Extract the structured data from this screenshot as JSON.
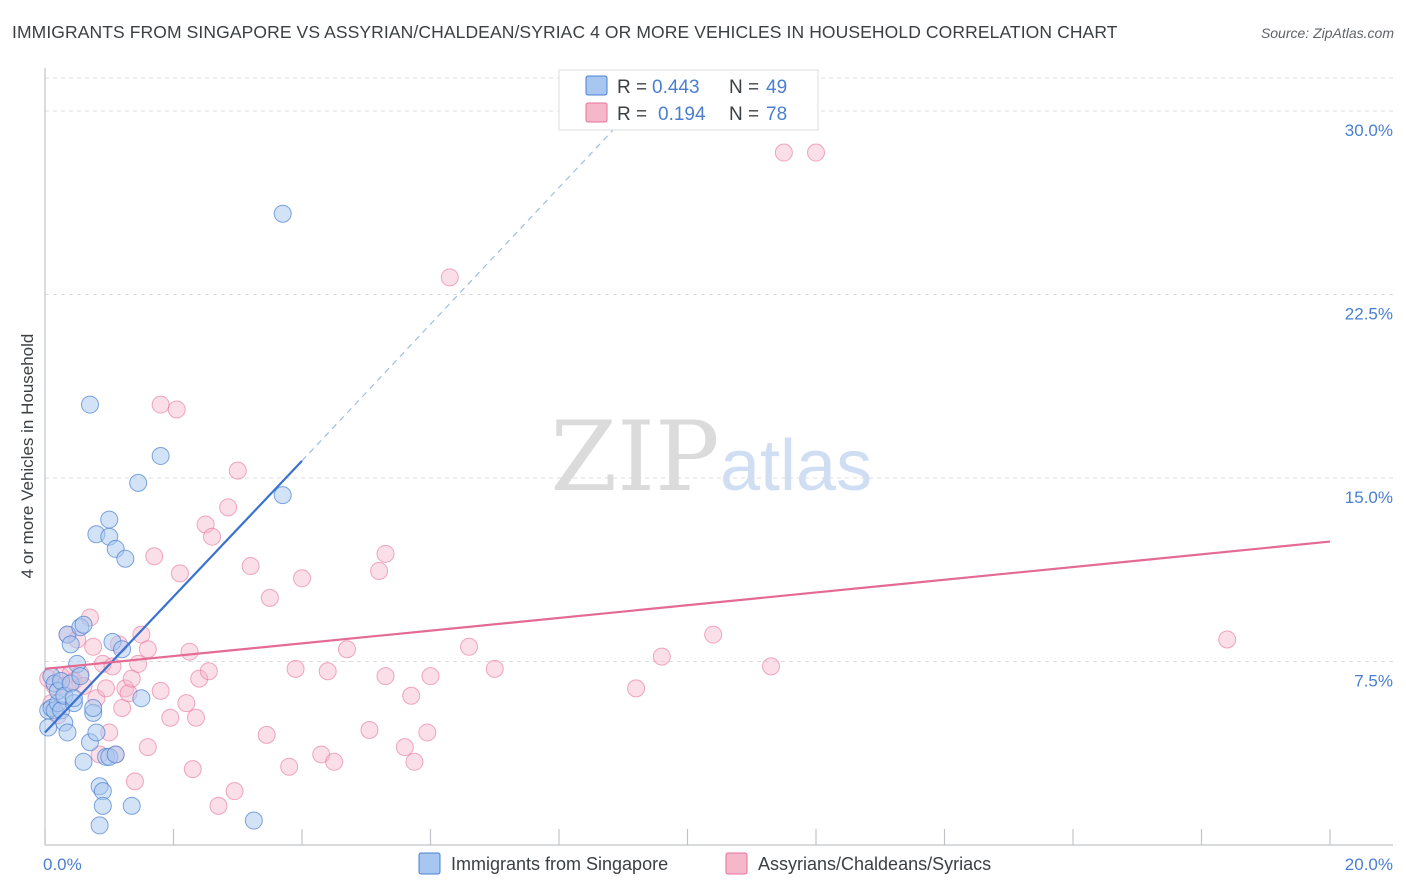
{
  "title": "IMMIGRANTS FROM SINGAPORE VS ASSYRIAN/CHALDEAN/SYRIAC 4 OR MORE VEHICLES IN HOUSEHOLD CORRELATION CHART",
  "source": "Source: ZipAtlas.com",
  "watermark": {
    "zip": "ZIP",
    "atlas": "atlas"
  },
  "colors": {
    "blue": "#4a7fd0",
    "blue_fill": "#a8c7f0",
    "blue_line": "#3a73cf",
    "pink": "#e8729a",
    "pink_fill": "#f5b8cb",
    "pink_line": "#e46a94",
    "grid": "#dadce0",
    "text": "#3c4043"
  },
  "chart_data": {
    "type": "scatter",
    "title": "IMMIGRANTS FROM SINGAPORE VS ASSYRIAN/CHALDEAN/SYRIAC 4 OR MORE VEHICLES IN HOUSEHOLD CORRELATION CHART",
    "xlabel": "",
    "ylabel": "4 or more Vehicles in Household",
    "xlim": [
      0,
      20
    ],
    "ylim": [
      0,
      32
    ],
    "x_tick_labels": [
      "0.0%",
      "20.0%"
    ],
    "y_ticks": [
      7.5,
      15.0,
      22.5,
      30.0
    ],
    "y_tick_labels": [
      "7.5%",
      "15.0%",
      "22.5%",
      "30.0%"
    ],
    "legend": [
      {
        "series": "Immigrants from Singapore",
        "r_label": "R =",
        "r": "0.443",
        "n_label": "N =",
        "n": "49"
      },
      {
        "series": "Assyrians/Chaldeans/Syriacs",
        "r_label": "R =",
        "r": "0.194",
        "n_label": "N =",
        "n": "78"
      }
    ],
    "series": [
      {
        "name": "Immigrants from Singapore",
        "color": "#4a7fd0",
        "trend": {
          "x0": 0,
          "y0": 4.6,
          "x1": 4.0,
          "y1": 15.7,
          "dashed_to_x": 9.3,
          "dashed_to_y": 30.5
        },
        "points": [
          [
            0.05,
            4.8
          ],
          [
            0.05,
            5.5
          ],
          [
            0.1,
            5.6
          ],
          [
            0.1,
            6.9
          ],
          [
            0.15,
            5.5
          ],
          [
            0.15,
            6.6
          ],
          [
            0.2,
            5.8
          ],
          [
            0.2,
            6.3
          ],
          [
            0.25,
            5.5
          ],
          [
            0.25,
            6.7
          ],
          [
            0.3,
            6.1
          ],
          [
            0.3,
            5.0
          ],
          [
            0.35,
            4.6
          ],
          [
            0.35,
            8.6
          ],
          [
            0.4,
            8.2
          ],
          [
            0.4,
            6.6
          ],
          [
            0.45,
            5.8
          ],
          [
            0.45,
            6.0
          ],
          [
            0.5,
            7.4
          ],
          [
            0.55,
            8.9
          ],
          [
            0.55,
            6.9
          ],
          [
            0.6,
            3.4
          ],
          [
            0.6,
            9.0
          ],
          [
            0.7,
            18.0
          ],
          [
            0.7,
            4.2
          ],
          [
            0.75,
            5.4
          ],
          [
            0.75,
            5.6
          ],
          [
            0.8,
            4.6
          ],
          [
            0.8,
            12.7
          ],
          [
            0.85,
            2.4
          ],
          [
            0.85,
            0.8
          ],
          [
            0.9,
            2.2
          ],
          [
            0.9,
            1.6
          ],
          [
            0.95,
            3.6
          ],
          [
            1.0,
            12.6
          ],
          [
            1.0,
            3.6
          ],
          [
            1.0,
            13.3
          ],
          [
            1.05,
            8.3
          ],
          [
            1.1,
            3.7
          ],
          [
            1.1,
            12.1
          ],
          [
            1.2,
            8.0
          ],
          [
            1.25,
            11.7
          ],
          [
            1.35,
            1.6
          ],
          [
            1.45,
            14.8
          ],
          [
            1.5,
            6.0
          ],
          [
            1.8,
            15.9
          ],
          [
            3.25,
            1.0
          ],
          [
            3.7,
            14.3
          ],
          [
            3.7,
            25.8
          ]
        ]
      },
      {
        "name": "Assyrians/Chaldeans/Syriacs",
        "color": "#e8729a",
        "trend": {
          "x0": 0,
          "y0": 7.2,
          "x1": 20,
          "y1": 12.4
        },
        "points": [
          [
            0.05,
            6.8
          ],
          [
            0.1,
            5.8
          ],
          [
            0.15,
            6.5
          ],
          [
            0.2,
            5.3
          ],
          [
            0.25,
            6.9
          ],
          [
            0.3,
            6.5
          ],
          [
            0.35,
            8.6
          ],
          [
            0.4,
            7.0
          ],
          [
            0.45,
            6.7
          ],
          [
            0.5,
            8.4
          ],
          [
            0.55,
            7.0
          ],
          [
            0.6,
            6.5
          ],
          [
            0.7,
            9.3
          ],
          [
            0.75,
            8.1
          ],
          [
            0.8,
            6.0
          ],
          [
            0.85,
            3.7
          ],
          [
            0.9,
            7.4
          ],
          [
            0.95,
            6.4
          ],
          [
            1.0,
            4.6
          ],
          [
            1.05,
            7.3
          ],
          [
            1.1,
            3.7
          ],
          [
            1.15,
            8.2
          ],
          [
            1.2,
            5.6
          ],
          [
            1.25,
            6.4
          ],
          [
            1.3,
            6.2
          ],
          [
            1.35,
            6.8
          ],
          [
            1.4,
            2.6
          ],
          [
            1.45,
            7.4
          ],
          [
            1.5,
            8.6
          ],
          [
            1.6,
            8.0
          ],
          [
            1.6,
            4.0
          ],
          [
            1.7,
            11.8
          ],
          [
            1.8,
            6.3
          ],
          [
            1.8,
            18.0
          ],
          [
            1.95,
            5.2
          ],
          [
            2.05,
            17.8
          ],
          [
            2.1,
            11.1
          ],
          [
            2.2,
            5.8
          ],
          [
            2.25,
            7.9
          ],
          [
            2.3,
            3.1
          ],
          [
            2.35,
            5.2
          ],
          [
            2.4,
            6.8
          ],
          [
            2.5,
            13.1
          ],
          [
            2.55,
            7.1
          ],
          [
            2.6,
            12.6
          ],
          [
            2.7,
            1.6
          ],
          [
            2.85,
            13.8
          ],
          [
            2.95,
            2.2
          ],
          [
            3.0,
            15.3
          ],
          [
            3.2,
            11.4
          ],
          [
            3.45,
            4.5
          ],
          [
            3.5,
            10.1
          ],
          [
            3.8,
            3.2
          ],
          [
            3.9,
            7.2
          ],
          [
            4.0,
            10.9
          ],
          [
            4.3,
            3.7
          ],
          [
            4.4,
            7.1
          ],
          [
            4.5,
            3.4
          ],
          [
            4.7,
            8.0
          ],
          [
            5.05,
            4.7
          ],
          [
            5.2,
            11.2
          ],
          [
            5.3,
            11.9
          ],
          [
            5.3,
            6.9
          ],
          [
            5.6,
            4.0
          ],
          [
            5.7,
            6.1
          ],
          [
            5.75,
            3.4
          ],
          [
            5.95,
            4.6
          ],
          [
            6.0,
            6.9
          ],
          [
            6.3,
            23.2
          ],
          [
            6.6,
            8.1
          ],
          [
            7.0,
            7.2
          ],
          [
            9.2,
            6.4
          ],
          [
            9.6,
            7.7
          ],
          [
            10.4,
            8.6
          ],
          [
            11.3,
            7.3
          ],
          [
            11.5,
            28.3
          ],
          [
            12.0,
            28.3
          ],
          [
            18.4,
            8.4
          ]
        ]
      }
    ]
  }
}
